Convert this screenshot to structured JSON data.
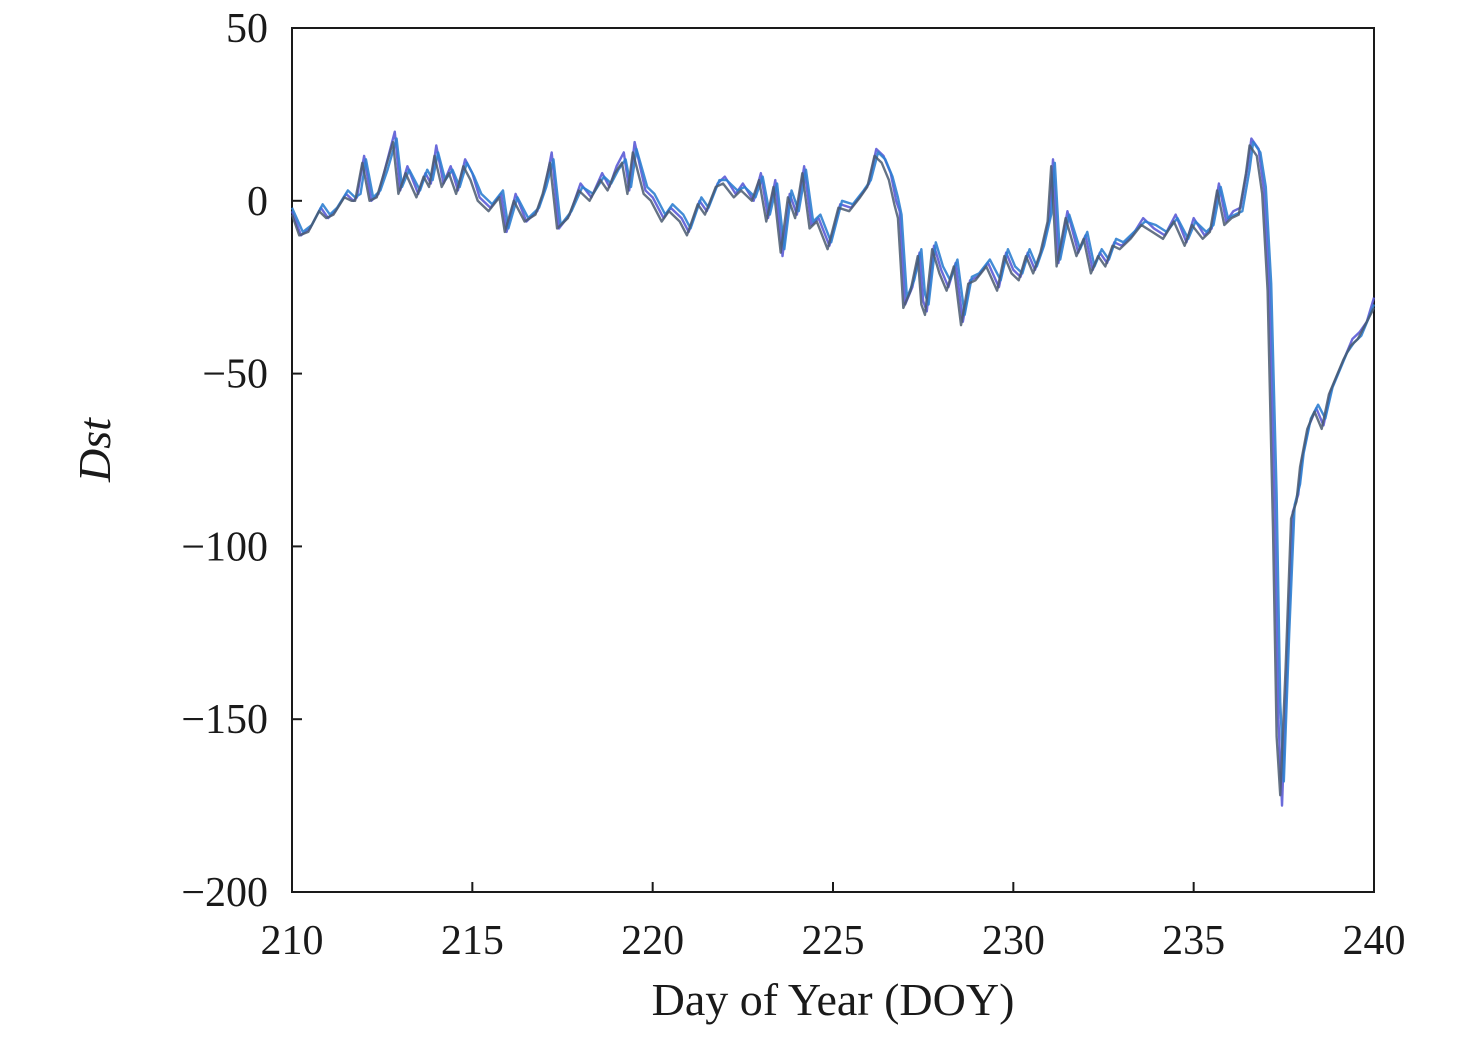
{
  "chart_data": {
    "type": "line",
    "title": "",
    "xlabel": "Day of Year (DOY)",
    "ylabel": "Dst",
    "xlim": [
      210,
      240
    ],
    "ylim": [
      -200,
      50
    ],
    "x_ticks": [
      210,
      215,
      220,
      225,
      230,
      235,
      240
    ],
    "y_ticks": [
      50,
      0,
      -50,
      -100,
      -150,
      -200
    ],
    "y_tick_labels": [
      "50",
      "0",
      "−50",
      "−100",
      "−150",
      "−200"
    ],
    "grid": false,
    "legend": "none",
    "colors": {
      "series_a": "#5b5bd6",
      "series_b": "#2f7fd0",
      "series_c": "#4a5a70"
    },
    "series": [
      {
        "color": "#5b5bd6",
        "x": [
          210.0,
          210.25,
          210.5,
          210.8,
          211.0,
          211.2,
          211.5,
          211.7,
          211.8,
          212.0,
          212.2,
          212.4,
          212.6,
          212.85,
          213.0,
          213.2,
          213.5,
          213.7,
          213.85,
          214.0,
          214.2,
          214.4,
          214.6,
          214.8,
          215.0,
          215.2,
          215.5,
          215.8,
          215.95,
          216.2,
          216.5,
          216.8,
          217.0,
          217.2,
          217.4,
          217.7,
          218.0,
          218.3,
          218.6,
          218.8,
          219.0,
          219.2,
          219.35,
          219.5,
          219.8,
          220.0,
          220.3,
          220.5,
          220.8,
          221.0,
          221.3,
          221.5,
          221.8,
          222.0,
          222.3,
          222.5,
          222.8,
          223.0,
          223.2,
          223.4,
          223.6,
          223.8,
          224.0,
          224.2,
          224.4,
          224.6,
          224.9,
          225.2,
          225.5,
          225.8,
          226.0,
          226.2,
          226.4,
          226.6,
          226.75,
          226.85,
          227.0,
          227.2,
          227.4,
          227.5,
          227.6,
          227.8,
          228.0,
          228.2,
          228.4,
          228.6,
          228.8,
          229.0,
          229.3,
          229.6,
          229.8,
          230.0,
          230.2,
          230.4,
          230.6,
          230.8,
          231.0,
          231.1,
          231.25,
          231.5,
          231.8,
          232.0,
          232.2,
          232.4,
          232.6,
          232.8,
          233.0,
          233.3,
          233.6,
          233.9,
          234.2,
          234.5,
          234.8,
          235.0,
          235.3,
          235.5,
          235.7,
          235.9,
          236.1,
          236.3,
          236.5,
          236.6,
          236.8,
          236.95,
          237.1,
          237.25,
          237.35,
          237.45,
          237.6,
          237.75,
          237.9,
          238.0,
          238.2,
          238.4,
          238.6,
          238.8,
          239.0,
          239.2,
          239.4,
          239.6,
          239.8,
          240.0
        ],
        "y": [
          -3,
          -10,
          -8,
          -2,
          -5,
          -3,
          2,
          0,
          1,
          13,
          0,
          2,
          10,
          20,
          3,
          10,
          2,
          8,
          5,
          16,
          5,
          10,
          3,
          12,
          8,
          1,
          -2,
          2,
          -9,
          2,
          -6,
          -3,
          3,
          14,
          -8,
          -4,
          5,
          1,
          8,
          4,
          10,
          14,
          3,
          17,
          3,
          1,
          -5,
          -2,
          -5,
          -9,
          0,
          -3,
          5,
          7,
          2,
          5,
          0,
          8,
          -5,
          6,
          -16,
          2,
          -4,
          10,
          -7,
          -5,
          -13,
          -1,
          -2,
          2,
          5,
          15,
          13,
          8,
          0,
          -3,
          -30,
          -25,
          -15,
          -29,
          -32,
          -13,
          -20,
          -25,
          -18,
          -35,
          -23,
          -22,
          -18,
          -25,
          -15,
          -20,
          -22,
          -15,
          -20,
          -14,
          -5,
          12,
          -18,
          -3,
          -15,
          -10,
          -20,
          -15,
          -18,
          -12,
          -13,
          -10,
          -5,
          -8,
          -10,
          -4,
          -12,
          -5,
          -10,
          -8,
          5,
          -6,
          -3,
          -2,
          10,
          18,
          15,
          3,
          -25,
          -90,
          -150,
          -175,
          -130,
          -90,
          -85,
          -75,
          -65,
          -60,
          -65,
          -55,
          -50,
          -45,
          -40,
          -38,
          -35,
          -28
        ]
      },
      {
        "color": "#2f7fd0",
        "x": [
          210.0,
          210.3,
          210.55,
          210.85,
          211.05,
          211.25,
          211.55,
          211.75,
          211.9,
          212.05,
          212.25,
          212.45,
          212.65,
          212.9,
          213.05,
          213.25,
          213.55,
          213.75,
          213.9,
          214.05,
          214.25,
          214.45,
          214.65,
          214.85,
          215.05,
          215.25,
          215.55,
          215.85,
          216.0,
          216.25,
          216.55,
          216.85,
          217.05,
          217.25,
          217.45,
          217.75,
          218.05,
          218.35,
          218.65,
          218.85,
          219.05,
          219.25,
          219.4,
          219.55,
          219.85,
          220.05,
          220.35,
          220.55,
          220.85,
          221.05,
          221.35,
          221.55,
          221.85,
          222.05,
          222.35,
          222.55,
          222.85,
          223.05,
          223.25,
          223.45,
          223.65,
          223.85,
          224.05,
          224.25,
          224.45,
          224.65,
          224.95,
          225.25,
          225.55,
          225.85,
          226.05,
          226.25,
          226.45,
          226.65,
          226.8,
          226.9,
          227.05,
          227.25,
          227.45,
          227.55,
          227.65,
          227.85,
          228.05,
          228.25,
          228.45,
          228.65,
          228.85,
          229.05,
          229.35,
          229.65,
          229.85,
          230.05,
          230.25,
          230.45,
          230.65,
          230.85,
          231.05,
          231.15,
          231.3,
          231.55,
          231.85,
          232.05,
          232.25,
          232.45,
          232.65,
          232.85,
          233.05,
          233.35,
          233.65,
          233.95,
          234.25,
          234.55,
          234.85,
          235.05,
          235.35,
          235.55,
          235.75,
          235.95,
          236.15,
          236.35,
          236.55,
          236.65,
          236.85,
          237.0,
          237.15,
          237.3,
          237.4,
          237.5,
          237.65,
          237.8,
          237.95,
          238.05,
          238.25,
          238.45,
          238.65,
          238.85,
          239.05,
          239.25,
          239.45,
          239.65,
          239.85,
          240.0
        ],
        "y": [
          -2,
          -9,
          -7,
          -1,
          -4,
          -2,
          3,
          1,
          2,
          12,
          1,
          3,
          9,
          18,
          4,
          9,
          3,
          9,
          6,
          14,
          6,
          9,
          4,
          11,
          7,
          2,
          -1,
          3,
          -8,
          1,
          -5,
          -2,
          4,
          12,
          -7,
          -3,
          4,
          2,
          7,
          5,
          9,
          12,
          4,
          15,
          4,
          2,
          -4,
          -1,
          -4,
          -8,
          1,
          -2,
          6,
          6,
          3,
          4,
          1,
          7,
          -4,
          5,
          -14,
          3,
          -3,
          9,
          -6,
          -4,
          -12,
          0,
          -1,
          3,
          6,
          14,
          12,
          7,
          1,
          -4,
          -28,
          -23,
          -14,
          -27,
          -30,
          -12,
          -19,
          -23,
          -17,
          -33,
          -22,
          -21,
          -17,
          -23,
          -14,
          -19,
          -21,
          -14,
          -19,
          -13,
          -4,
          11,
          -17,
          -4,
          -14,
          -9,
          -19,
          -14,
          -17,
          -11,
          -12,
          -9,
          -6,
          -7,
          -9,
          -5,
          -11,
          -6,
          -9,
          -7,
          4,
          -5,
          -4,
          -3,
          9,
          17,
          14,
          4,
          -24,
          -85,
          -145,
          -168,
          -125,
          -88,
          -82,
          -73,
          -63,
          -59,
          -63,
          -54,
          -49,
          -44,
          -41,
          -39,
          -34,
          -30
        ]
      },
      {
        "color": "#4a5a70",
        "x": [
          210.0,
          210.2,
          210.45,
          210.75,
          210.95,
          211.15,
          211.45,
          211.65,
          211.75,
          211.95,
          212.15,
          212.35,
          212.55,
          212.8,
          212.95,
          213.15,
          213.45,
          213.65,
          213.8,
          213.95,
          214.15,
          214.35,
          214.55,
          214.75,
          214.95,
          215.15,
          215.45,
          215.75,
          215.9,
          216.15,
          216.45,
          216.75,
          216.95,
          217.15,
          217.35,
          217.65,
          217.95,
          218.25,
          218.55,
          218.75,
          218.95,
          219.15,
          219.3,
          219.45,
          219.75,
          219.95,
          220.25,
          220.45,
          220.75,
          220.95,
          221.25,
          221.45,
          221.75,
          221.95,
          222.25,
          222.45,
          222.75,
          222.95,
          223.15,
          223.35,
          223.55,
          223.75,
          223.95,
          224.15,
          224.35,
          224.55,
          224.85,
          225.15,
          225.45,
          225.75,
          225.95,
          226.15,
          226.35,
          226.55,
          226.7,
          226.8,
          226.95,
          227.15,
          227.35,
          227.45,
          227.55,
          227.75,
          227.95,
          228.15,
          228.35,
          228.55,
          228.75,
          228.95,
          229.25,
          229.55,
          229.75,
          229.95,
          230.15,
          230.35,
          230.55,
          230.75,
          230.95,
          231.05,
          231.2,
          231.45,
          231.75,
          231.95,
          232.15,
          232.35,
          232.55,
          232.75,
          232.95,
          233.25,
          233.55,
          233.85,
          234.15,
          234.45,
          234.75,
          234.95,
          235.25,
          235.45,
          235.65,
          235.85,
          236.05,
          236.25,
          236.45,
          236.55,
          236.75,
          236.9,
          237.05,
          237.2,
          237.3,
          237.4,
          237.55,
          237.7,
          237.85,
          237.95,
          238.15,
          238.35,
          238.55,
          238.75,
          238.95,
          239.15,
          239.35,
          239.55,
          239.75,
          240.0
        ],
        "y": [
          -4,
          -10,
          -9,
          -3,
          -5,
          -4,
          1,
          0,
          0,
          11,
          0,
          1,
          8,
          17,
          2,
          8,
          1,
          7,
          4,
          13,
          4,
          8,
          2,
          10,
          6,
          0,
          -3,
          1,
          -9,
          0,
          -6,
          -4,
          2,
          11,
          -8,
          -5,
          3,
          0,
          6,
          3,
          8,
          11,
          2,
          14,
          2,
          0,
          -6,
          -3,
          -6,
          -10,
          -1,
          -4,
          4,
          5,
          1,
          3,
          0,
          6,
          -6,
          4,
          -15,
          1,
          -5,
          8,
          -8,
          -6,
          -14,
          -2,
          -3,
          1,
          4,
          13,
          11,
          6,
          -1,
          -5,
          -31,
          -26,
          -16,
          -30,
          -33,
          -14,
          -21,
          -26,
          -19,
          -36,
          -24,
          -23,
          -19,
          -26,
          -16,
          -21,
          -23,
          -16,
          -21,
          -15,
          -6,
          10,
          -19,
          -5,
          -16,
          -11,
          -21,
          -16,
          -19,
          -13,
          -14,
          -11,
          -7,
          -9,
          -11,
          -6,
          -13,
          -7,
          -11,
          -9,
          3,
          -7,
          -5,
          -4,
          8,
          16,
          13,
          2,
          -26,
          -95,
          -155,
          -172,
          -135,
          -92,
          -87,
          -77,
          -66,
          -61,
          -66,
          -56,
          -51,
          -46,
          -42,
          -40,
          -36,
          -31
        ]
      }
    ]
  }
}
